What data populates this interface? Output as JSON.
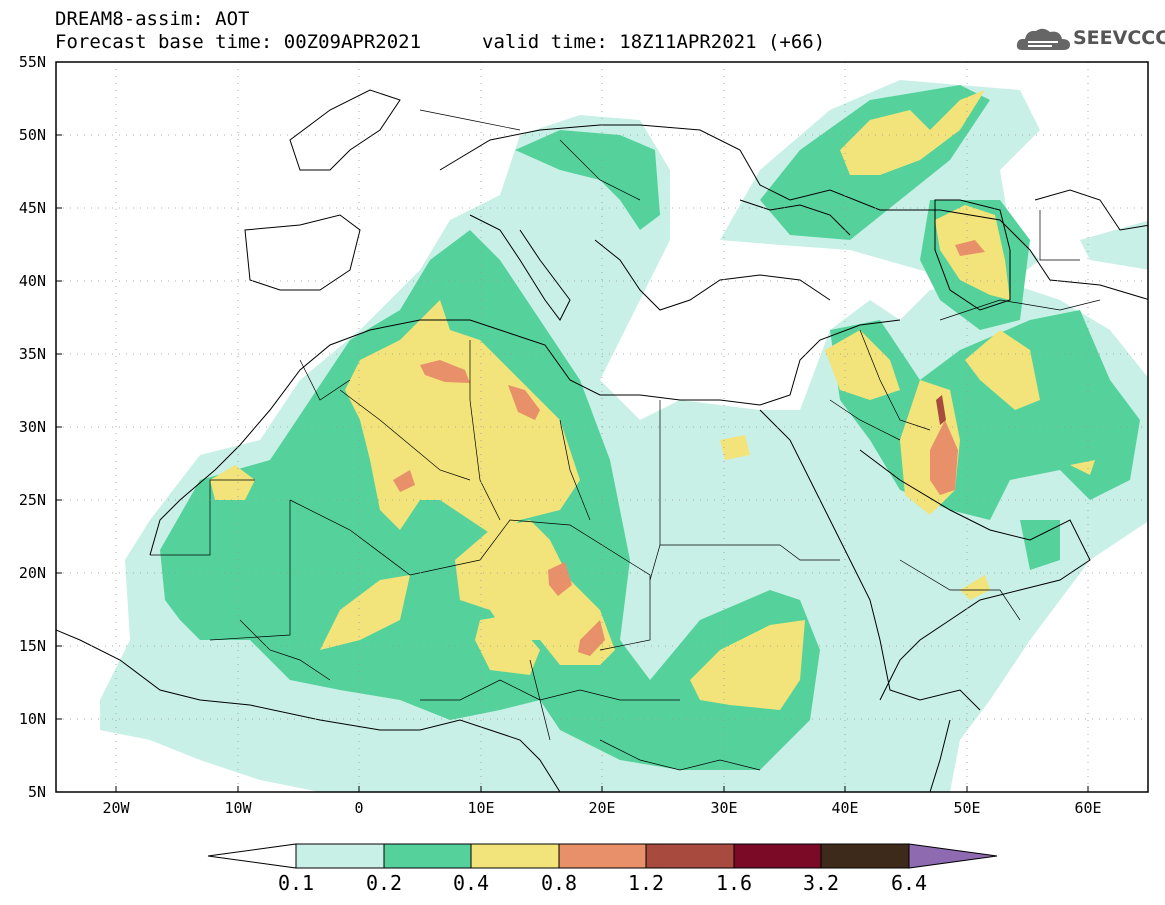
{
  "title": {
    "line1": "DREAM8-assim: AOT",
    "line2": "Forecast base time: 00Z09APR2021",
    "valid": "valid time: 18Z11APR2021 (+66)"
  },
  "logo": {
    "text": "SEEVCCC",
    "icon": "cloud-logo-icon"
  },
  "axes": {
    "lat_labels": [
      "55N",
      "50N",
      "45N",
      "40N",
      "35N",
      "30N",
      "25N",
      "20N",
      "15N",
      "10N",
      "5N"
    ],
    "lon_labels": [
      "20W",
      "10W",
      "0",
      "10E",
      "20E",
      "30E",
      "40E",
      "50E",
      "60E"
    ]
  },
  "colorbar": {
    "labels": [
      "0.1",
      "0.2",
      "0.4",
      "0.8",
      "1.2",
      "1.6",
      "3.2",
      "6.4"
    ],
    "colors": [
      "#ffffff",
      "#c8f0e6",
      "#55d29c",
      "#f2e47a",
      "#e8906a",
      "#a94a3e",
      "#7a0a26",
      "#3d2a1a",
      "#8e6ab0"
    ]
  },
  "field_colors": {
    "low": "#c8f0e6",
    "mid": "#55d29c",
    "high": "#f2e47a",
    "vhigh": "#e8906a",
    "border": "#000000"
  }
}
